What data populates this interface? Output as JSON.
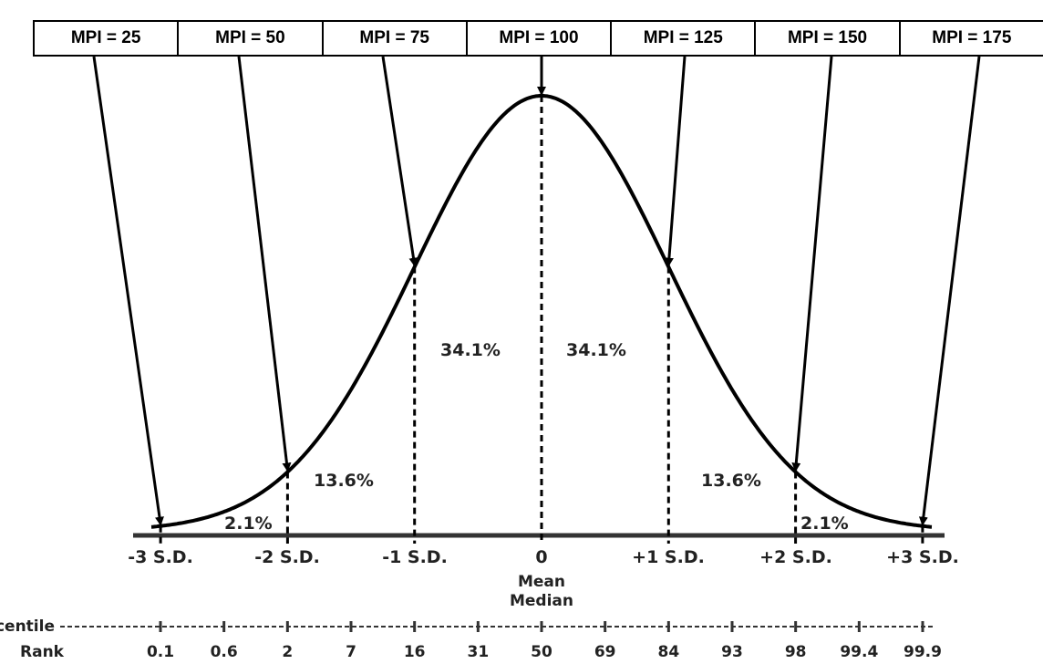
{
  "mpi_labels": [
    "MPI = 25",
    "MPI = 50",
    "MPI = 75",
    "MPI = 100",
    "MPI = 125",
    "MPI = 150",
    "MPI = 175"
  ],
  "sd_labels": [
    "-3 S.D.",
    "-2 S.D.",
    "-1 S.D.",
    "0",
    "+1 S.D.",
    "+2 S.D.",
    "+3 S.D."
  ],
  "center_sublabels": [
    "Mean",
    "Median"
  ],
  "area_percentages": {
    "left_tail": "2.1%",
    "left_mid": "13.6%",
    "left_center": "34.1%",
    "right_center": "34.1%",
    "right_mid": "13.6%",
    "right_tail": "2.1%"
  },
  "percentile_title": [
    "Percentile",
    "Rank"
  ],
  "percentile_ranks": [
    "0.1",
    "0.6",
    "2",
    "7",
    "16",
    "31",
    "50",
    "69",
    "84",
    "93",
    "98",
    "99.4",
    "99.9"
  ],
  "colors": {
    "line": "#000000",
    "text": "#222222",
    "background": "#ffffff"
  }
}
